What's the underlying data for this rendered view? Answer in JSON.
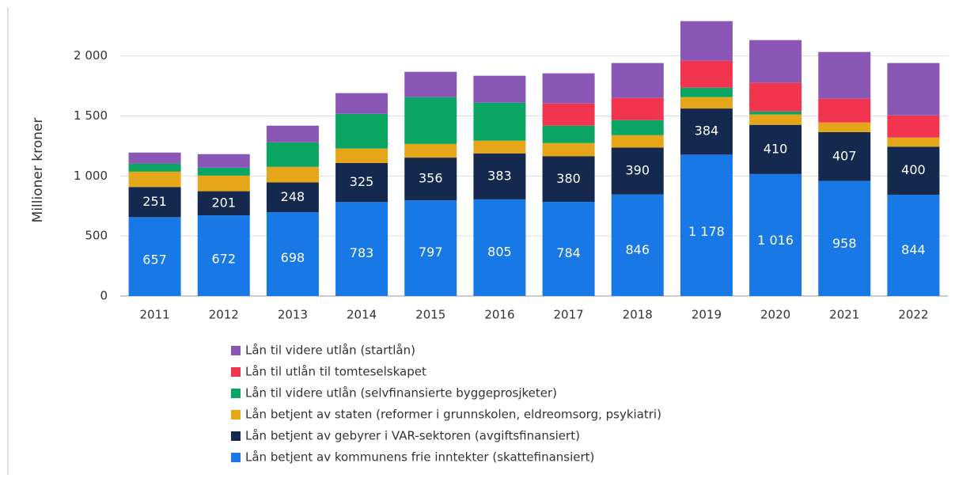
{
  "chart_data": {
    "type": "stacked_bar",
    "ylabel": "Millioner kroner",
    "categories": [
      "2011",
      "2012",
      "2013",
      "2014",
      "2015",
      "2016",
      "2017",
      "2018",
      "2019",
      "2020",
      "2021",
      "2022"
    ],
    "ylim": [
      0,
      2400
    ],
    "yticks": [
      0,
      500,
      {
        "value": 1000,
        "label": "1 000"
      },
      {
        "value": 1500,
        "label": "1 500"
      },
      {
        "value": 2000,
        "label": "2 000"
      }
    ],
    "grid": true,
    "legend": "bottom",
    "series": [
      {
        "name": "Lån betjent av kommunens frie inntekter (skattefinansiert)",
        "color": "#1778e6",
        "values": [
          657,
          672,
          698,
          783,
          797,
          805,
          784,
          846,
          1178,
          1016,
          958,
          844
        ],
        "value_labels": [
          "657",
          "672",
          "698",
          "783",
          "797",
          "805",
          "784",
          "846",
          "1 178",
          "1 016",
          "958",
          "844"
        ]
      },
      {
        "name": "Lån betjent av gebyrer i VAR-sektoren (avgiftsfinansiert)",
        "color": "#14294d",
        "values": [
          251,
          201,
          248,
          325,
          356,
          383,
          380,
          390,
          384,
          410,
          407,
          400
        ]
      },
      {
        "name": "Lån betjent av staten (reformer i grunnskolen, eldreomsorg, psykiatri)",
        "color": "#e5a619",
        "values": [
          128,
          130,
          130,
          120,
          114,
          106,
          110,
          104,
          95,
          86,
          81,
          76
        ]
      },
      {
        "name": "Lån til videre utlån (selvfinansierte byggeprosjketer)",
        "color": "#0ba563",
        "values": [
          66,
          66,
          204,
          290,
          390,
          317,
          145,
          125,
          79,
          26,
          0,
          0
        ]
      },
      {
        "name": "Lån til utlån til tomteselskapet",
        "color": "#f2354f",
        "values": [
          0,
          0,
          0,
          0,
          0,
          0,
          185,
          185,
          224,
          238,
          198,
          185
        ]
      },
      {
        "name": "Lån til videre utlån (startlån)",
        "color": "#8b57b7",
        "values": [
          93,
          113,
          139,
          172,
          211,
          224,
          251,
          291,
          330,
          356,
          389,
          436
        ]
      }
    ]
  }
}
